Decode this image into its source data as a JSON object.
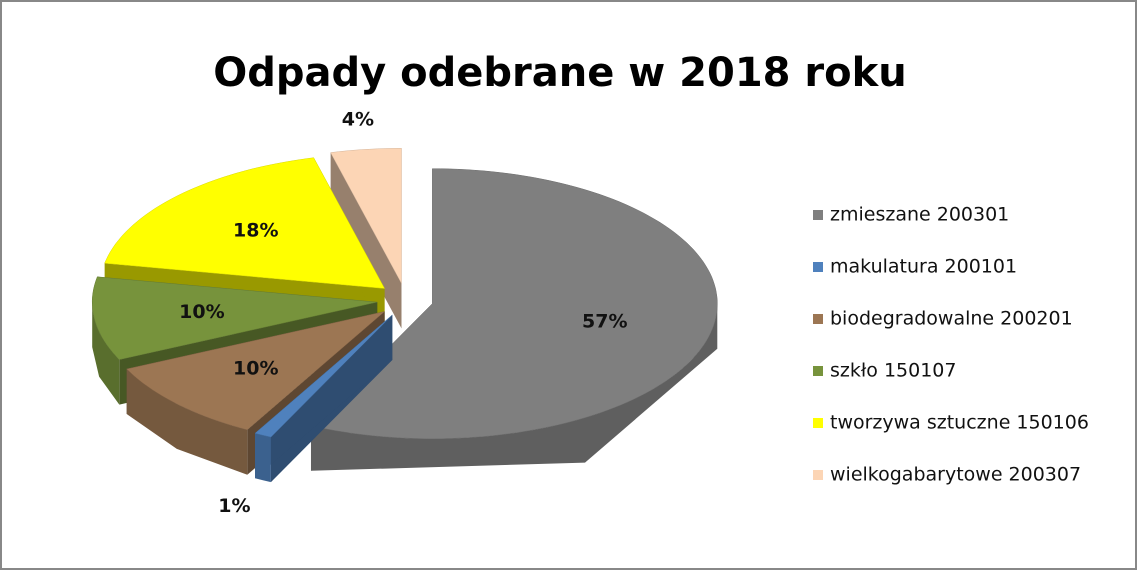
{
  "chart_data": {
    "type": "pie3d",
    "title": "Odpady odebrane w 2018 roku",
    "categories": [
      "zmieszane 200301",
      "makulatura 200101",
      "biodegradowalne 200201",
      "szkło 150107",
      "tworzywa sztuczne 150106",
      "wielkogabarytowe 200307"
    ],
    "values": [
      57,
      1,
      10,
      10,
      18,
      4
    ],
    "value_labels": [
      "57%",
      "1%",
      "10%",
      "10%",
      "18%",
      "4%"
    ],
    "colors": [
      "#7f7f7f",
      "#4f81bd",
      "#9c7653",
      "#77933c",
      "#ffff00",
      "#fcd5b5"
    ],
    "legend": "right"
  }
}
